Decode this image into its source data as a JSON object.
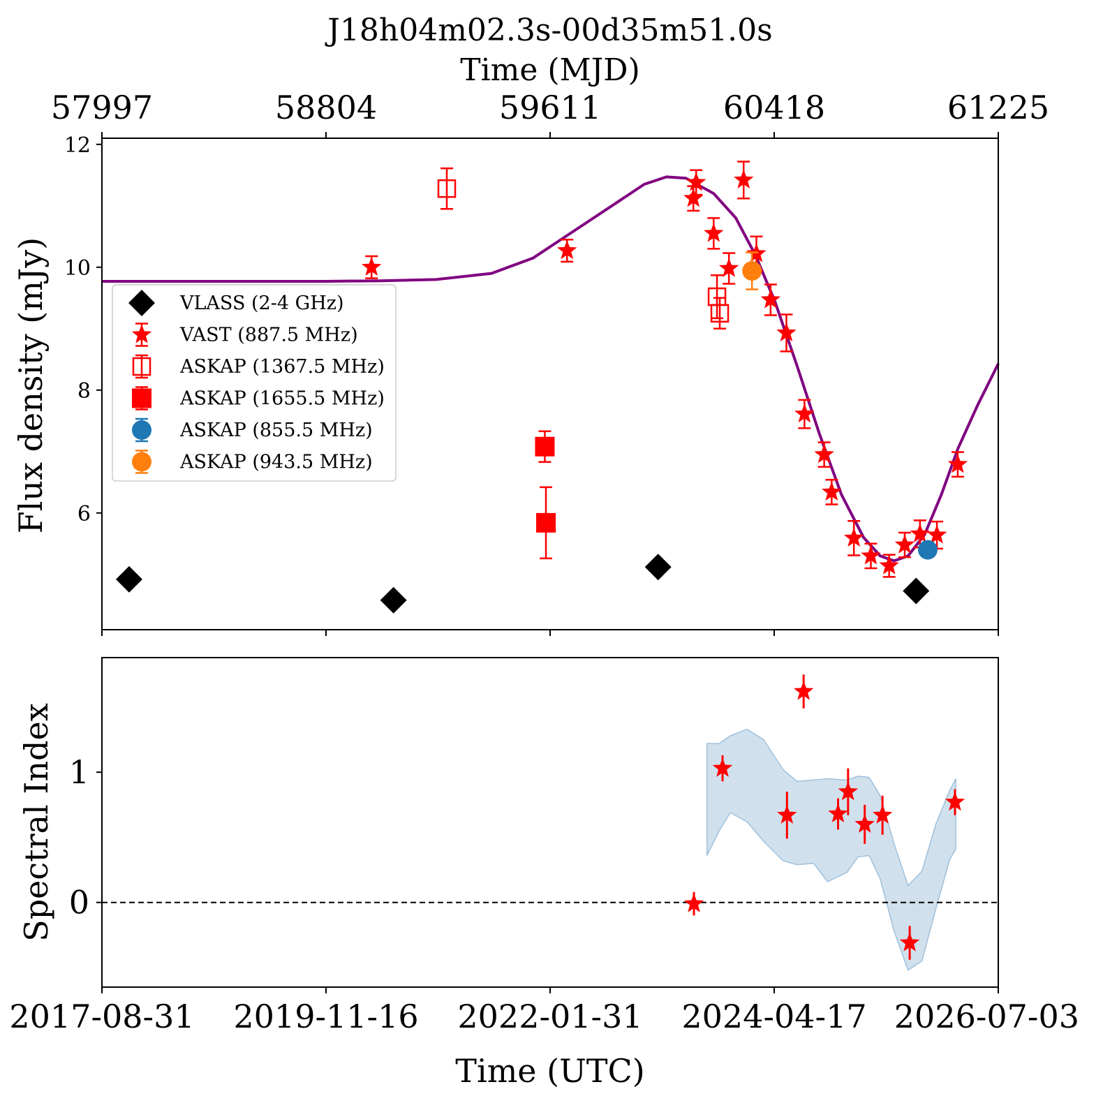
{
  "chart_data": [
    {
      "type": "scatter",
      "panel": "flux",
      "title": "J18h04m02.3s-00d35m51.0s",
      "top_xlabel": "Time (MJD)",
      "top_ticks": [
        "57997",
        "58804",
        "59611",
        "60418",
        "61225"
      ],
      "ylabel": "Flux density (mJy)",
      "xlim": [
        57997,
        61225
      ],
      "ylim": [
        4.1,
        12.1
      ],
      "yticks": [
        6,
        8,
        10,
        12
      ],
      "legend_position": "center-left",
      "series": [
        {
          "name": "VLASS (2-4 GHz)",
          "marker": "diamond",
          "color": "#000000",
          "points": [
            {
              "x": 58095,
              "y": 4.92,
              "err": 0.06
            },
            {
              "x": 59047,
              "y": 4.58,
              "err": 0.06
            },
            {
              "x": 60000,
              "y": 5.12,
              "err": 0.06
            },
            {
              "x": 60929,
              "y": 4.73,
              "err": 0.06
            }
          ]
        },
        {
          "name": "VAST (887.5 MHz)",
          "marker": "star",
          "color": "#ff0000",
          "points": [
            {
              "x": 58968,
              "y": 10.0,
              "err": 0.18
            },
            {
              "x": 59672,
              "y": 10.27,
              "err": 0.18
            },
            {
              "x": 60127,
              "y": 11.12,
              "err": 0.2
            },
            {
              "x": 60137,
              "y": 11.38,
              "err": 0.2
            },
            {
              "x": 60200,
              "y": 10.55,
              "err": 0.25
            },
            {
              "x": 60255,
              "y": 9.98,
              "err": 0.25
            },
            {
              "x": 60308,
              "y": 11.42,
              "err": 0.3
            },
            {
              "x": 60354,
              "y": 10.22,
              "err": 0.28
            },
            {
              "x": 60405,
              "y": 9.47,
              "err": 0.25
            },
            {
              "x": 60462,
              "y": 8.93,
              "err": 0.3
            },
            {
              "x": 60527,
              "y": 7.61,
              "err": 0.23
            },
            {
              "x": 60598,
              "y": 6.95,
              "err": 0.2
            },
            {
              "x": 60625,
              "y": 6.34,
              "err": 0.2
            },
            {
              "x": 60705,
              "y": 5.59,
              "err": 0.28
            },
            {
              "x": 60766,
              "y": 5.3,
              "err": 0.2
            },
            {
              "x": 60832,
              "y": 5.14,
              "err": 0.18
            },
            {
              "x": 60888,
              "y": 5.48,
              "err": 0.2
            },
            {
              "x": 60943,
              "y": 5.66,
              "err": 0.22
            },
            {
              "x": 61004,
              "y": 5.64,
              "err": 0.22
            },
            {
              "x": 61079,
              "y": 6.79,
              "err": 0.2
            }
          ]
        },
        {
          "name": "ASKAP (1367.5 MHz)",
          "marker": "square-open",
          "color": "#ff0000",
          "points": [
            {
              "x": 59239,
              "y": 11.28,
              "err": 0.33
            },
            {
              "x": 60212,
              "y": 9.52,
              "err": 0.35
            },
            {
              "x": 60222,
              "y": 9.25,
              "err": 0.25
            }
          ]
        },
        {
          "name": "ASKAP (1655.5 MHz)",
          "marker": "square",
          "color": "#ff0000",
          "points": [
            {
              "x": 59592,
              "y": 7.08,
              "err": 0.25
            },
            {
              "x": 59596,
              "y": 5.84,
              "err": 0.58
            }
          ]
        },
        {
          "name": "ASKAP (855.5 MHz)",
          "marker": "circle",
          "color": "#1f77b4",
          "points": [
            {
              "x": 60971,
              "y": 5.4,
              "err": 0.1
            }
          ]
        },
        {
          "name": "ASKAP (943.5 MHz)",
          "marker": "circle",
          "color": "#ff7f0e",
          "points": [
            {
              "x": 60338,
              "y": 9.94,
              "err": 0.3
            }
          ]
        }
      ],
      "model_curve": {
        "color": "#800080",
        "points": [
          [
            57997,
            9.77
          ],
          [
            58400,
            9.77
          ],
          [
            58800,
            9.77
          ],
          [
            59000,
            9.78
          ],
          [
            59200,
            9.8
          ],
          [
            59400,
            9.9
          ],
          [
            59550,
            10.15
          ],
          [
            59700,
            10.6
          ],
          [
            59850,
            11.05
          ],
          [
            59950,
            11.35
          ],
          [
            60030,
            11.47
          ],
          [
            60100,
            11.45
          ],
          [
            60200,
            11.2
          ],
          [
            60280,
            10.8
          ],
          [
            60350,
            10.2
          ],
          [
            60420,
            9.45
          ],
          [
            60500,
            8.4
          ],
          [
            60580,
            7.3
          ],
          [
            60660,
            6.3
          ],
          [
            60740,
            5.6
          ],
          [
            60800,
            5.3
          ],
          [
            60850,
            5.22
          ],
          [
            60900,
            5.3
          ],
          [
            60960,
            5.65
          ],
          [
            61020,
            6.3
          ],
          [
            61080,
            7.05
          ],
          [
            61150,
            7.75
          ],
          [
            61225,
            8.43
          ]
        ]
      }
    },
    {
      "type": "scatter",
      "panel": "spectral-index",
      "xlabel": "Time (UTC)",
      "ylabel": "Spectral Index",
      "xlim": [
        57997,
        61225
      ],
      "ylim": [
        -0.65,
        1.88
      ],
      "yticks": [
        0,
        1
      ],
      "xtick_labels": [
        "2017-08-31",
        "2019-11-16",
        "2022-01-31",
        "2024-04-17",
        "2026-07-03"
      ],
      "reference_line": 0,
      "series": [
        {
          "name": "Spectral Index",
          "marker": "star",
          "color": "#ff0000",
          "points": [
            {
              "x": 60129,
              "y": -0.01,
              "err": 0.09
            },
            {
              "x": 60232,
              "y": 1.03,
              "err": 0.1
            },
            {
              "x": 60464,
              "y": 0.67,
              "err": 0.18
            },
            {
              "x": 60524,
              "y": 1.62,
              "err": 0.13
            },
            {
              "x": 60648,
              "y": 0.68,
              "err": 0.12
            },
            {
              "x": 60684,
              "y": 0.85,
              "err": 0.18
            },
            {
              "x": 60744,
              "y": 0.6,
              "err": 0.15
            },
            {
              "x": 60808,
              "y": 0.67,
              "err": 0.15
            },
            {
              "x": 60906,
              "y": -0.31,
              "err": 0.13
            },
            {
              "x": 61069,
              "y": 0.77,
              "err": 0.1
            }
          ]
        }
      ],
      "band": {
        "color": "#bcd4e6",
        "points": [
          [
            60176,
            0.36,
            1.22
          ],
          [
            60220,
            0.55,
            1.22
          ],
          [
            60260,
            0.69,
            1.28
          ],
          [
            60320,
            0.62,
            1.33
          ],
          [
            60380,
            0.47,
            1.25
          ],
          [
            60450,
            0.32,
            1.02
          ],
          [
            60500,
            0.29,
            0.93
          ],
          [
            60560,
            0.3,
            0.94
          ],
          [
            60610,
            0.16,
            0.95
          ],
          [
            60680,
            0.23,
            0.94
          ],
          [
            60720,
            0.35,
            0.97
          ],
          [
            60760,
            0.36,
            0.96
          ],
          [
            60800,
            0.18,
            0.82
          ],
          [
            60850,
            -0.22,
            0.45
          ],
          [
            60900,
            -0.52,
            0.13
          ],
          [
            60950,
            -0.45,
            0.24
          ],
          [
            61000,
            -0.05,
            0.6
          ],
          [
            61050,
            0.33,
            0.86
          ],
          [
            61072,
            0.41,
            0.95
          ]
        ]
      }
    }
  ]
}
